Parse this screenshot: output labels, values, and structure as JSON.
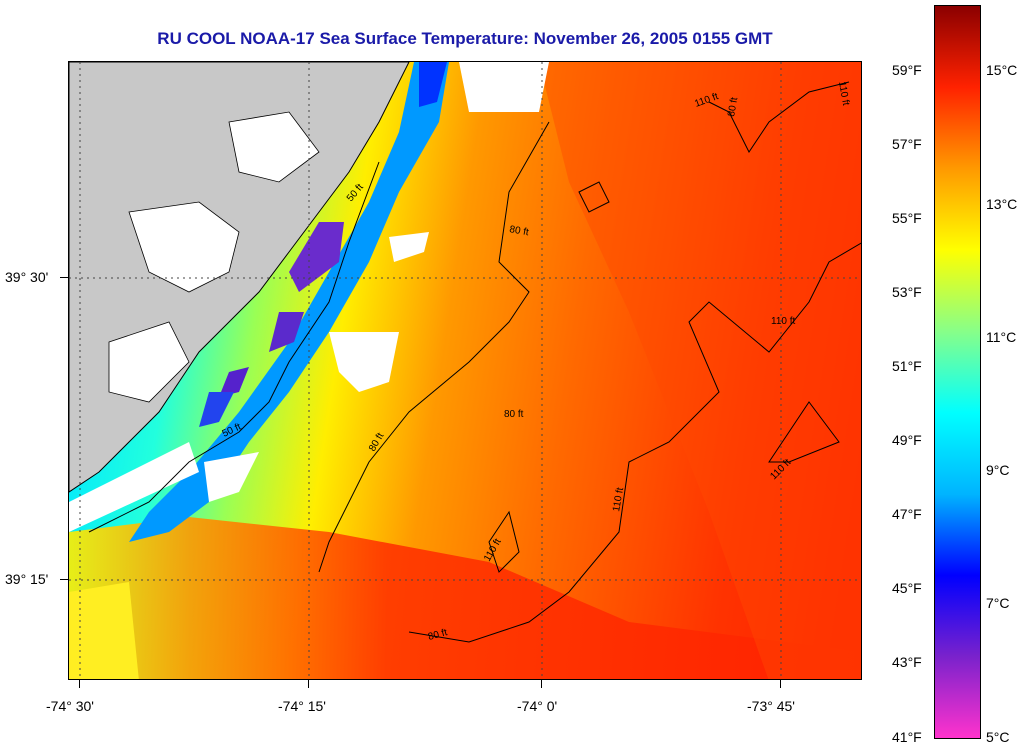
{
  "title": "RU COOL  NOAA-17  Sea Surface Temperature:  November 26, 2005 0155 GMT",
  "map": {
    "longitude_labels": [
      "-74° 30'",
      "-74° 15'",
      "-74° 0'",
      "-73° 45'"
    ],
    "latitude_labels": [
      "39° 30'",
      "39° 15'"
    ],
    "contour_labels": [
      "50 ft",
      "80 ft",
      "110 ft"
    ],
    "land_color": "#c8c8c8",
    "cloud_color": "#ffffff"
  },
  "colorbar": {
    "fahrenheit_labels": [
      "59°F",
      "57°F",
      "55°F",
      "53°F",
      "51°F",
      "49°F",
      "47°F",
      "45°F",
      "43°F",
      "41°F"
    ],
    "celsius_labels": [
      "15°C",
      "13°C",
      "11°C",
      "9°C",
      "7°C",
      "5°C"
    ],
    "range_celsius": [
      5,
      16
    ],
    "palette": [
      "#ff33cc",
      "#7a22cc",
      "#0000ff",
      "#00b4ff",
      "#00ffff",
      "#88ff88",
      "#ffff00",
      "#ff9900",
      "#ff2200",
      "#8b0000"
    ]
  }
}
